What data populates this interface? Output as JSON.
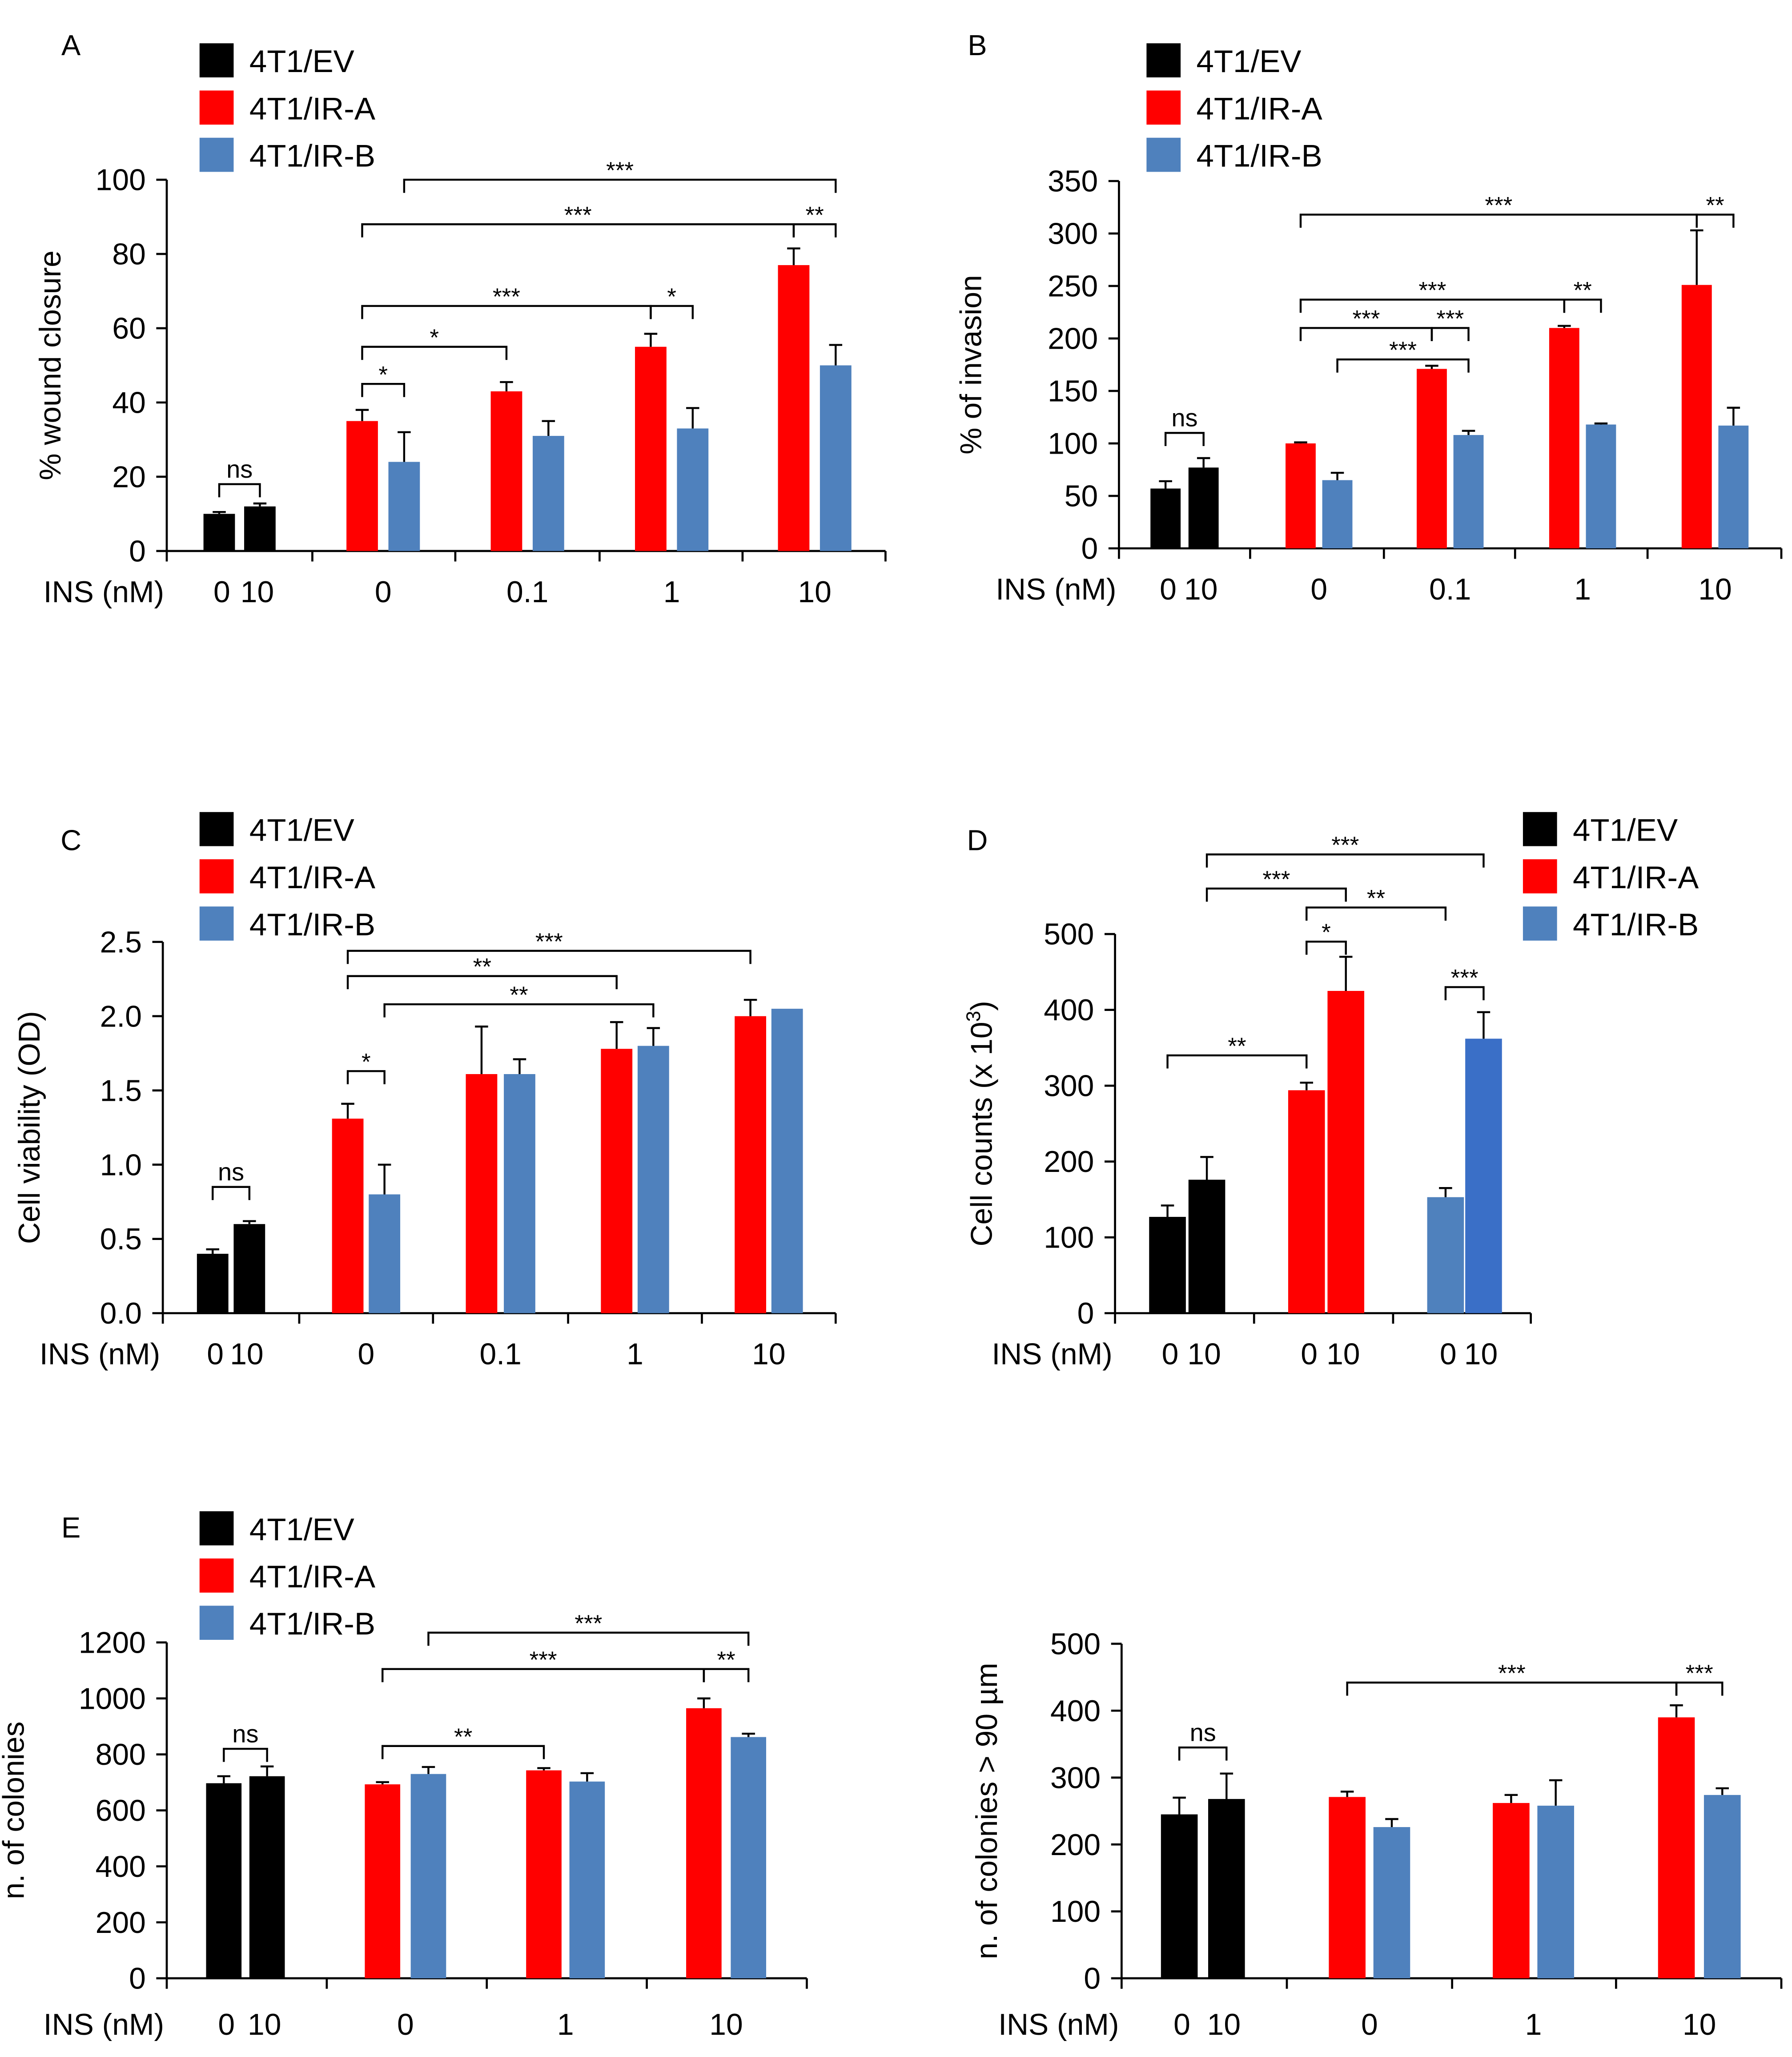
{
  "figure": {
    "description_free": true
  },
  "colors": {
    "ev": "#000000",
    "ira": "#ff0000",
    "irb": "#4f81bd",
    "irb_dark": "#3a6fc7"
  },
  "legend_labels": [
    "4T1/EV",
    "4T1/IR-A",
    "4T1/IR-B"
  ],
  "chart_data": [
    {
      "id": "A",
      "panel_label": "A",
      "type": "bar",
      "ylabel": "% wound closure",
      "xlabel": "INS (nM)",
      "ylim": [
        0,
        100
      ],
      "yticks": [
        0,
        20,
        40,
        60,
        80,
        100
      ],
      "legend": [
        "4T1/EV",
        "4T1/IR-A",
        "4T1/IR-B"
      ],
      "legend_position": "top-left",
      "groups": [
        "",
        "0",
        "0.1",
        "1",
        "10"
      ],
      "subtick_labels": [
        "0",
        "10"
      ],
      "bars": [
        {
          "group": 0,
          "slot": 0,
          "series": "ev",
          "value": 10,
          "err": 0.5
        },
        {
          "group": 0,
          "slot": 1,
          "series": "ev",
          "value": 12,
          "err": 0.8
        },
        {
          "group": 1,
          "slot": 0,
          "series": "ira",
          "value": 35,
          "err": 3
        },
        {
          "group": 1,
          "slot": 1,
          "series": "irb",
          "value": 24,
          "err": 8
        },
        {
          "group": 2,
          "slot": 0,
          "series": "ira",
          "value": 43,
          "err": 2.5
        },
        {
          "group": 2,
          "slot": 1,
          "series": "irb",
          "value": 31,
          "err": 4
        },
        {
          "group": 3,
          "slot": 0,
          "series": "ira",
          "value": 55,
          "err": 3.5
        },
        {
          "group": 3,
          "slot": 1,
          "series": "irb",
          "value": 33,
          "err": 5.5
        },
        {
          "group": 4,
          "slot": 0,
          "series": "ira",
          "value": 77,
          "err": 4.5
        },
        {
          "group": 4,
          "slot": 1,
          "series": "irb",
          "value": 50,
          "err": 5.5
        }
      ],
      "brackets": [
        {
          "from": 0,
          "to": 1,
          "y": 18,
          "label": "ns"
        },
        {
          "from": 2,
          "to": 3,
          "y": 45,
          "label": "*"
        },
        {
          "from": 2,
          "to": 4,
          "y": 55,
          "label": "*"
        },
        {
          "from": 2,
          "to": 6,
          "y": 66,
          "label": "***"
        },
        {
          "from": 6,
          "to": 7,
          "y": 66,
          "label": "*"
        },
        {
          "from": 2,
          "to": 8,
          "y": 88,
          "label": "***"
        },
        {
          "from": 8,
          "to": 9,
          "y": 88,
          "label": "**"
        },
        {
          "from": 3,
          "to": 9,
          "y": 100,
          "label": "***"
        }
      ]
    },
    {
      "id": "B",
      "panel_label": "B",
      "type": "bar",
      "ylabel": "% of invasion",
      "xlabel": "INS (nM)",
      "ylim": [
        0,
        350
      ],
      "yticks": [
        0,
        50,
        100,
        150,
        200,
        250,
        300,
        350
      ],
      "legend": [
        "4T1/EV",
        "4T1/IR-A",
        "4T1/IR-B"
      ],
      "legend_position": "top-left",
      "groups": [
        "",
        "0",
        "0.1",
        "1",
        "10"
      ],
      "subtick_labels": [
        "0",
        "10"
      ],
      "bars": [
        {
          "group": 0,
          "slot": 0,
          "series": "ev",
          "value": 57,
          "err": 7
        },
        {
          "group": 0,
          "slot": 1,
          "series": "ev",
          "value": 77,
          "err": 9
        },
        {
          "group": 1,
          "slot": 0,
          "series": "ira",
          "value": 100,
          "err": 1
        },
        {
          "group": 1,
          "slot": 1,
          "series": "irb",
          "value": 65,
          "err": 7
        },
        {
          "group": 2,
          "slot": 0,
          "series": "ira",
          "value": 171,
          "err": 3
        },
        {
          "group": 2,
          "slot": 1,
          "series": "irb",
          "value": 108,
          "err": 4
        },
        {
          "group": 3,
          "slot": 0,
          "series": "ira",
          "value": 210,
          "err": 2
        },
        {
          "group": 3,
          "slot": 1,
          "series": "irb",
          "value": 118,
          "err": 1
        },
        {
          "group": 4,
          "slot": 0,
          "series": "ira",
          "value": 251,
          "err": 52
        },
        {
          "group": 4,
          "slot": 1,
          "series": "irb",
          "value": 117,
          "err": 17
        }
      ],
      "brackets": [
        {
          "from": 0,
          "to": 1,
          "y": 110,
          "label": "ns"
        },
        {
          "from": 3,
          "to": 5,
          "y": 180,
          "label": "***"
        },
        {
          "from": 2,
          "to": 4,
          "y": 210,
          "label": "***"
        },
        {
          "from": 4,
          "to": 5,
          "y": 210,
          "label": "***"
        },
        {
          "from": 2,
          "to": 6,
          "y": 237,
          "label": "***"
        },
        {
          "from": 6,
          "to": 7,
          "y": 237,
          "label": "**"
        },
        {
          "from": 2,
          "to": 8,
          "y": 318,
          "label": "***"
        },
        {
          "from": 8,
          "to": 9,
          "y": 318,
          "label": "**"
        }
      ]
    },
    {
      "id": "C",
      "panel_label": "C",
      "type": "bar",
      "ylabel": "Cell viability (OD)",
      "xlabel": "INS (nM)",
      "ylim": [
        0,
        2.5
      ],
      "yticks": [
        0.0,
        0.5,
        1.0,
        1.5,
        2.0,
        2.5
      ],
      "ytick_labels": [
        "0.0",
        "0.5",
        "1.0",
        "1.5",
        "2.0",
        "2.5"
      ],
      "legend": [
        "4T1/EV",
        "4T1/IR-A",
        "4T1/IR-B"
      ],
      "legend_position": "top-left",
      "groups": [
        "",
        "0",
        "0.1",
        "1",
        "10"
      ],
      "subtick_labels": [
        "0",
        "10"
      ],
      "bars": [
        {
          "group": 0,
          "slot": 0,
          "series": "ev",
          "value": 0.4,
          "err": 0.03
        },
        {
          "group": 0,
          "slot": 1,
          "series": "ev",
          "value": 0.6,
          "err": 0.02
        },
        {
          "group": 1,
          "slot": 0,
          "series": "ira",
          "value": 1.31,
          "err": 0.1
        },
        {
          "group": 1,
          "slot": 1,
          "series": "irb",
          "value": 0.8,
          "err": 0.2
        },
        {
          "group": 2,
          "slot": 0,
          "series": "ira",
          "value": 1.61,
          "err": 0.32
        },
        {
          "group": 2,
          "slot": 1,
          "series": "irb",
          "value": 1.61,
          "err": 0.1
        },
        {
          "group": 3,
          "slot": 0,
          "series": "ira",
          "value": 1.78,
          "err": 0.18
        },
        {
          "group": 3,
          "slot": 1,
          "series": "irb",
          "value": 1.8,
          "err": 0.12
        },
        {
          "group": 4,
          "slot": 0,
          "series": "ira",
          "value": 2.0,
          "err": 0.11
        },
        {
          "group": 4,
          "slot": 1,
          "series": "irb",
          "value": 2.05,
          "err": 0
        }
      ],
      "brackets": [
        {
          "from": 0,
          "to": 1,
          "y": 0.85,
          "label": "ns"
        },
        {
          "from": 2,
          "to": 3,
          "y": 1.63,
          "label": "*"
        },
        {
          "from": 3,
          "to": 7,
          "y": 2.08,
          "label": "**"
        },
        {
          "from": 2,
          "to": 6,
          "y": 2.27,
          "label": "**"
        },
        {
          "from": 2,
          "to": 8,
          "y": 2.44,
          "label": "***"
        }
      ]
    },
    {
      "id": "D",
      "panel_label": "D",
      "type": "bar",
      "ylabel": "Cell counts (x 10³)",
      "xlabel": "INS (nM)",
      "ylim": [
        0,
        500
      ],
      "yticks": [
        0,
        100,
        200,
        300,
        400,
        500
      ],
      "legend": [
        "4T1/EV",
        "4T1/IR-A",
        "4T1/IR-B"
      ],
      "legend_position": "top-right",
      "groups": [
        "",
        "",
        ""
      ],
      "subtick_labels": [
        "0",
        "10"
      ],
      "bars": [
        {
          "group": 0,
          "slot": 0,
          "series": "ev",
          "value": 127,
          "err": 15
        },
        {
          "group": 0,
          "slot": 1,
          "series": "ev",
          "value": 176,
          "err": 30
        },
        {
          "group": 1,
          "slot": 0,
          "series": "ira",
          "value": 294,
          "err": 10
        },
        {
          "group": 1,
          "slot": 1,
          "series": "ira",
          "value": 425,
          "err": 45
        },
        {
          "group": 2,
          "slot": 0,
          "series": "irb",
          "value": 153,
          "err": 12
        },
        {
          "group": 2,
          "slot": 1,
          "series": "irb_dark",
          "value": 362,
          "err": 35
        }
      ],
      "brackets": [
        {
          "from": 0,
          "to": 2,
          "y": 340,
          "label": "**"
        },
        {
          "from": 2,
          "to": 3,
          "y": 490,
          "label": "*"
        },
        {
          "from": 2,
          "to": 4,
          "y": 535,
          "label": "**"
        },
        {
          "from": 1,
          "to": 3,
          "y": 560,
          "label": "***"
        },
        {
          "from": 1,
          "to": 5,
          "y": 605,
          "label": "***"
        },
        {
          "from": 4,
          "to": 5,
          "y": 430,
          "label": "***"
        }
      ]
    },
    {
      "id": "E",
      "panel_label": "E",
      "type": "bar",
      "ylabel": "n. of colonies",
      "xlabel": "INS (nM)",
      "ylim": [
        0,
        1200
      ],
      "yticks": [
        0,
        200,
        400,
        600,
        800,
        1000,
        1200
      ],
      "legend": [
        "4T1/EV",
        "4T1/IR-A",
        "4T1/IR-B"
      ],
      "legend_position": "top-left",
      "groups": [
        "",
        "0",
        "1",
        "10"
      ],
      "subtick_labels": [
        "0",
        "10"
      ],
      "bars": [
        {
          "group": 0,
          "slot": 0,
          "series": "ev",
          "value": 697,
          "err": 25
        },
        {
          "group": 0,
          "slot": 1,
          "series": "ev",
          "value": 722,
          "err": 35
        },
        {
          "group": 1,
          "slot": 0,
          "series": "ira",
          "value": 693,
          "err": 8
        },
        {
          "group": 1,
          "slot": 1,
          "series": "irb",
          "value": 730,
          "err": 25
        },
        {
          "group": 2,
          "slot": 0,
          "series": "ira",
          "value": 743,
          "err": 8
        },
        {
          "group": 2,
          "slot": 1,
          "series": "irb",
          "value": 703,
          "err": 30
        },
        {
          "group": 3,
          "slot": 0,
          "series": "ira",
          "value": 965,
          "err": 35
        },
        {
          "group": 3,
          "slot": 1,
          "series": "irb",
          "value": 862,
          "err": 12
        }
      ],
      "brackets": [
        {
          "from": 0,
          "to": 1,
          "y": 820,
          "label": "ns"
        },
        {
          "from": 2,
          "to": 4,
          "y": 830,
          "label": "**"
        },
        {
          "from": 2,
          "to": 6,
          "y": 1105,
          "label": "***"
        },
        {
          "from": 6,
          "to": 7,
          "y": 1105,
          "label": "**"
        },
        {
          "from": 3,
          "to": 7,
          "y": 1235,
          "label": "***"
        }
      ]
    },
    {
      "id": "F",
      "panel_label": "",
      "type": "bar",
      "ylabel": "n. of colonies > 90 µm",
      "xlabel": "INS (nM)",
      "ylim": [
        0,
        500
      ],
      "yticks": [
        0,
        100,
        200,
        300,
        400,
        500
      ],
      "legend": [],
      "legend_position": "none",
      "groups": [
        "",
        "0",
        "1",
        "10"
      ],
      "subtick_labels": [
        "0",
        "10"
      ],
      "bars": [
        {
          "group": 0,
          "slot": 0,
          "series": "ev",
          "value": 245,
          "err": 25
        },
        {
          "group": 0,
          "slot": 1,
          "series": "ev",
          "value": 268,
          "err": 38
        },
        {
          "group": 1,
          "slot": 0,
          "series": "ira",
          "value": 271,
          "err": 8
        },
        {
          "group": 1,
          "slot": 1,
          "series": "irb",
          "value": 226,
          "err": 12
        },
        {
          "group": 2,
          "slot": 0,
          "series": "ira",
          "value": 262,
          "err": 12
        },
        {
          "group": 2,
          "slot": 1,
          "series": "irb",
          "value": 258,
          "err": 38
        },
        {
          "group": 3,
          "slot": 0,
          "series": "ira",
          "value": 390,
          "err": 18
        },
        {
          "group": 3,
          "slot": 1,
          "series": "irb",
          "value": 274,
          "err": 10
        }
      ],
      "brackets": [
        {
          "from": 0,
          "to": 1,
          "y": 345,
          "label": "ns"
        },
        {
          "from": 2,
          "to": 6,
          "y": 442,
          "label": "***"
        },
        {
          "from": 6,
          "to": 7,
          "y": 442,
          "label": "***"
        }
      ]
    }
  ]
}
